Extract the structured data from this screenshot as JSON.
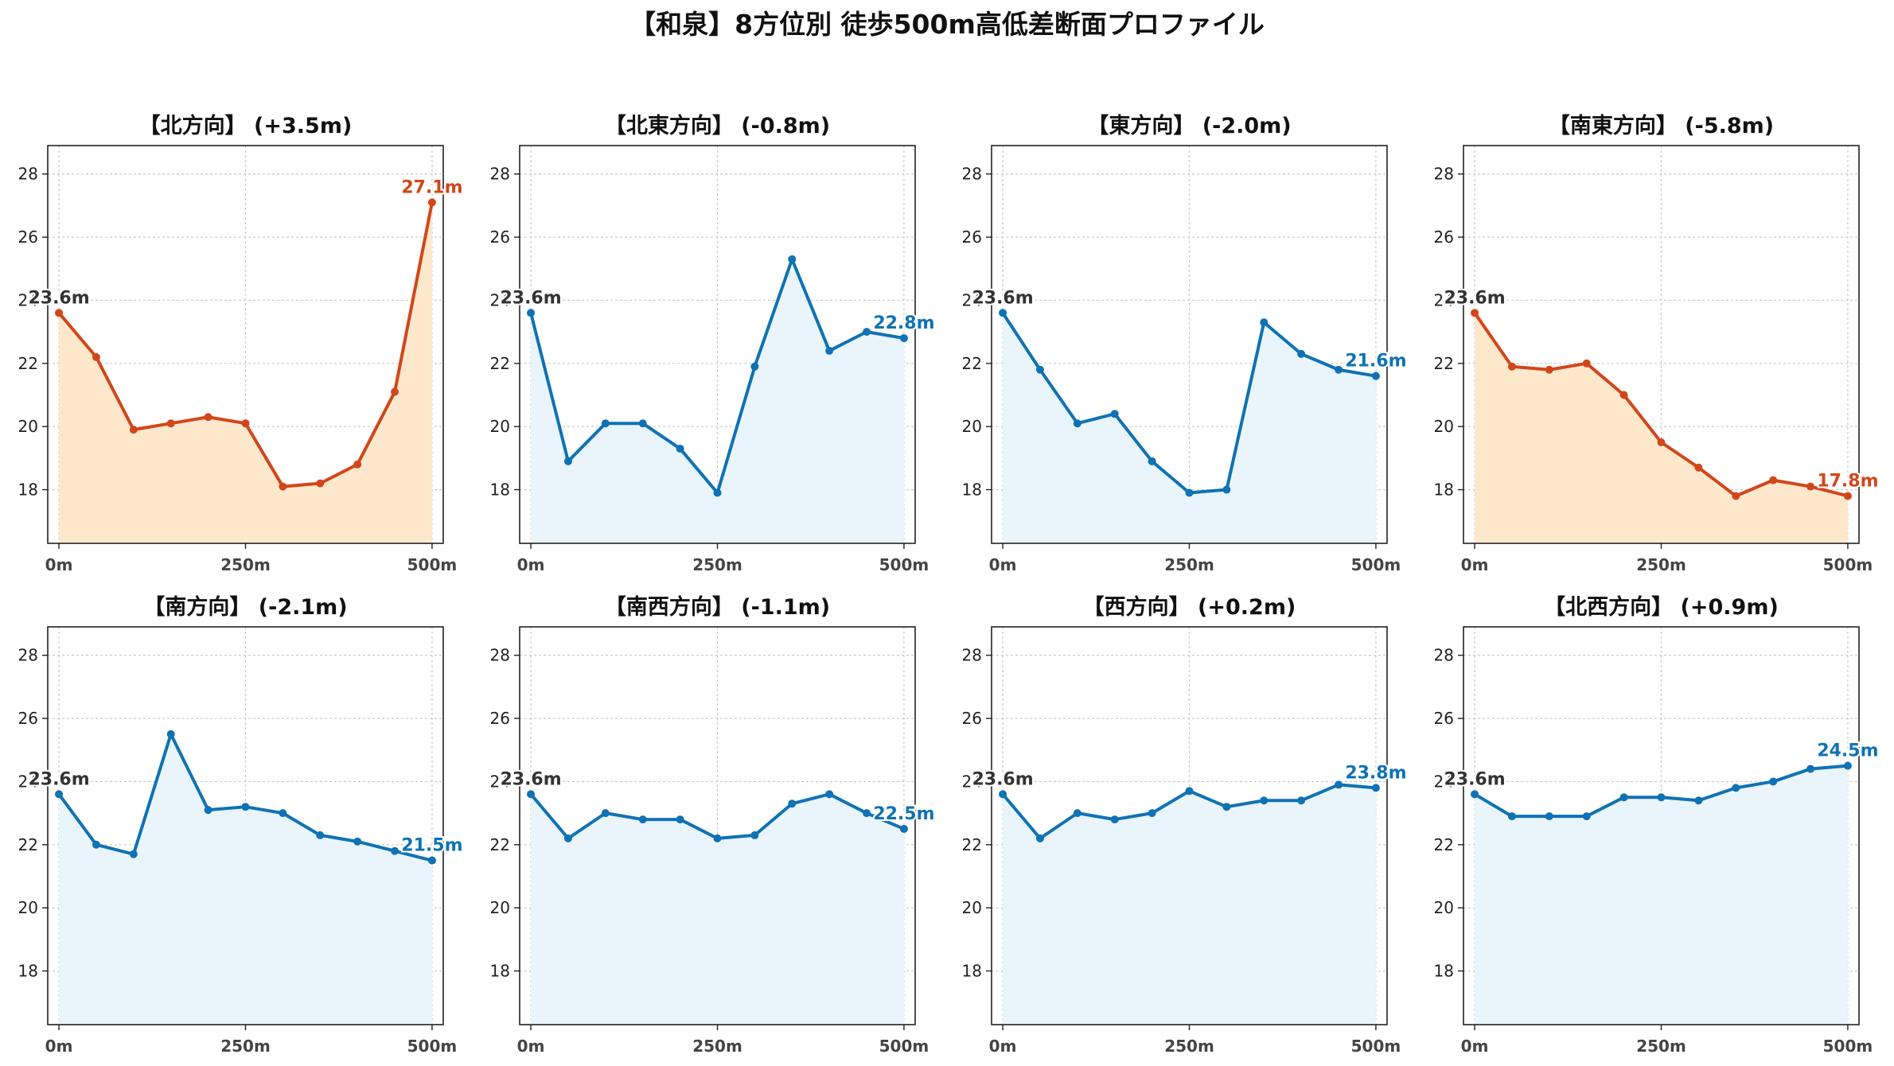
{
  "title": "【和泉】8方位別 徒歩500m高低差断面プロファイル",
  "colors": {
    "up_line": "#d2461a",
    "up_fill": "#fde8cc",
    "down_line": "#0f72b4",
    "down_fill": "#e9f5fb",
    "start_label": "#333333"
  },
  "chart_data": [
    {
      "type": "area",
      "title": "【北方向】 (+3.5m)",
      "color_scheme": "up",
      "x": [
        0,
        50,
        100,
        150,
        200,
        250,
        300,
        350,
        400,
        450,
        500
      ],
      "values": [
        23.6,
        22.2,
        19.9,
        20.1,
        20.3,
        20.1,
        18.1,
        18.2,
        18.8,
        21.1,
        27.1
      ],
      "start_label": "23.6m",
      "end_label": "27.1m"
    },
    {
      "type": "area",
      "title": "【北東方向】 (-0.8m)",
      "color_scheme": "down",
      "x": [
        0,
        50,
        100,
        150,
        200,
        250,
        300,
        350,
        400,
        450,
        500
      ],
      "values": [
        23.6,
        18.9,
        20.1,
        20.1,
        19.3,
        17.9,
        21.9,
        25.3,
        22.4,
        23.0,
        22.8
      ],
      "start_label": "23.6m",
      "end_label": "22.8m"
    },
    {
      "type": "area",
      "title": "【東方向】 (-2.0m)",
      "color_scheme": "down",
      "x": [
        0,
        50,
        100,
        150,
        200,
        250,
        300,
        350,
        400,
        450,
        500
      ],
      "values": [
        23.6,
        21.8,
        20.1,
        20.4,
        18.9,
        17.9,
        18.0,
        23.3,
        22.3,
        21.8,
        21.6
      ],
      "start_label": "23.6m",
      "end_label": "21.6m"
    },
    {
      "type": "area",
      "title": "【南東方向】 (-5.8m)",
      "color_scheme": "up",
      "x": [
        0,
        50,
        100,
        150,
        200,
        250,
        300,
        350,
        400,
        450,
        500
      ],
      "values": [
        23.6,
        21.9,
        21.8,
        22.0,
        21.0,
        19.5,
        18.7,
        17.8,
        18.3,
        18.1,
        17.8
      ],
      "start_label": "23.6m",
      "end_label": "17.8m"
    },
    {
      "type": "area",
      "title": "【南方向】 (-2.1m)",
      "color_scheme": "down",
      "x": [
        0,
        50,
        100,
        150,
        200,
        250,
        300,
        350,
        400,
        450,
        500
      ],
      "values": [
        23.6,
        22.0,
        21.7,
        25.5,
        23.1,
        23.2,
        23.0,
        22.3,
        22.1,
        21.8,
        21.5
      ],
      "start_label": "23.6m",
      "end_label": "21.5m"
    },
    {
      "type": "area",
      "title": "【南西方向】 (-1.1m)",
      "color_scheme": "down",
      "x": [
        0,
        50,
        100,
        150,
        200,
        250,
        300,
        350,
        400,
        450,
        500
      ],
      "values": [
        23.6,
        22.2,
        23.0,
        22.8,
        22.8,
        22.2,
        22.3,
        23.3,
        23.6,
        23.0,
        22.5
      ],
      "start_label": "23.6m",
      "end_label": "22.5m"
    },
    {
      "type": "area",
      "title": "【西方向】 (+0.2m)",
      "color_scheme": "down",
      "x": [
        0,
        50,
        100,
        150,
        200,
        250,
        300,
        350,
        400,
        450,
        500
      ],
      "values": [
        23.6,
        22.2,
        23.0,
        22.8,
        23.0,
        23.7,
        23.2,
        23.4,
        23.4,
        23.9,
        23.8
      ],
      "start_label": "23.6m",
      "end_label": "23.8m"
    },
    {
      "type": "area",
      "title": "【北西方向】 (+0.9m)",
      "color_scheme": "down",
      "x": [
        0,
        50,
        100,
        150,
        200,
        250,
        300,
        350,
        400,
        450,
        500
      ],
      "values": [
        23.6,
        22.9,
        22.9,
        22.9,
        23.5,
        23.5,
        23.4,
        23.8,
        24.0,
        24.4,
        24.5
      ],
      "start_label": "23.6m",
      "end_label": "24.5m"
    }
  ],
  "axes": {
    "xlim": [
      -15,
      515
    ],
    "ylim": [
      16.3,
      28.9
    ],
    "xticks": [
      0,
      250,
      500
    ],
    "xtick_labels": [
      "0m",
      "250m",
      "500m"
    ],
    "yticks": [
      18,
      20,
      22,
      24,
      26,
      28
    ],
    "ytick_labels": [
      "18",
      "20",
      "22",
      "24",
      "26",
      "28"
    ],
    "grid": true
  }
}
